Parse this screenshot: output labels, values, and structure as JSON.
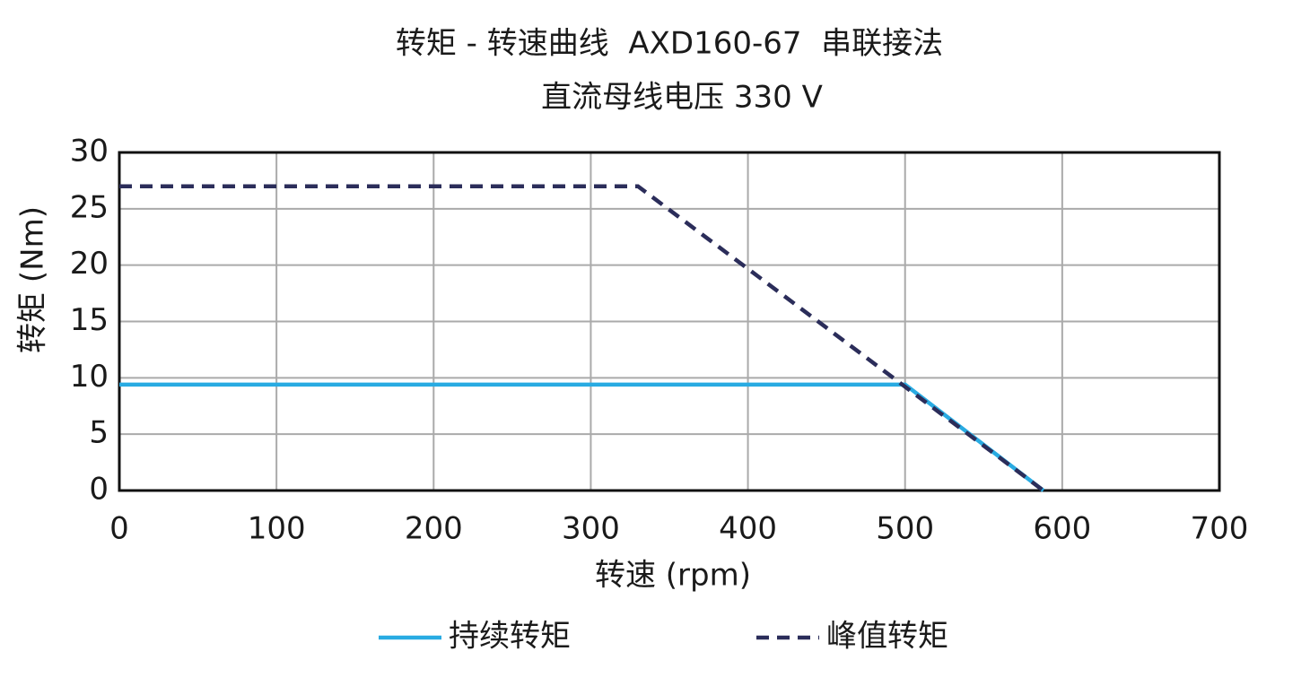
{
  "chart_data": {
    "type": "line",
    "title": "转矩 - 转速曲线  AXD160-67  串联接法",
    "subtitle": "直流母线电压 330 V",
    "x_label": "转速 (rpm)",
    "y_label": "转矩 (Nm)",
    "xlim": [
      0,
      700
    ],
    "xticks": [
      0,
      100,
      200,
      300,
      400,
      500,
      600,
      700
    ],
    "ylim": [
      0,
      30
    ],
    "yticks": [
      0,
      5,
      10,
      15,
      20,
      25,
      30
    ],
    "grid": true,
    "series": [
      {
        "name": "持续转矩",
        "color": "#29abe2",
        "dash": false,
        "x": [
          0,
          500,
          588
        ],
        "values": [
          9.4,
          9.4,
          0
        ]
      },
      {
        "name": "峰值转矩",
        "color": "#2b2d5a",
        "dash": true,
        "x": [
          0,
          330,
          588
        ],
        "values": [
          27,
          27,
          0
        ]
      }
    ]
  }
}
